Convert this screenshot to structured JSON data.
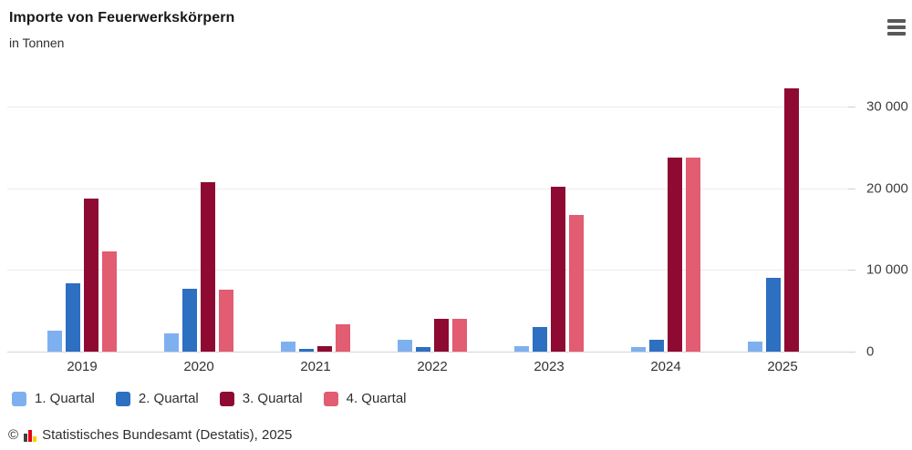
{
  "header": {
    "title": "Importe von Feuerwerkskörpern",
    "subtitle": "in Tonnen",
    "menu_icon": "hamburger-menu-icon"
  },
  "chart_data": {
    "type": "bar",
    "title": "Importe von Feuerwerkskörpern",
    "ylabel": "in Tonnen",
    "categories": [
      "2019",
      "2020",
      "2021",
      "2022",
      "2023",
      "2024",
      "2025"
    ],
    "series": [
      {
        "name": "1. Quartal",
        "color": "#7eb0f0",
        "values": [
          2600,
          2200,
          1200,
          1500,
          700,
          600,
          1200
        ]
      },
      {
        "name": "2. Quartal",
        "color": "#2d6fc0",
        "values": [
          8400,
          7700,
          300,
          600,
          3000,
          1500,
          9000
        ]
      },
      {
        "name": "3. Quartal",
        "color": "#8e0a33",
        "values": [
          18800,
          20800,
          700,
          4000,
          20200,
          23800,
          32200
        ]
      },
      {
        "name": "4. Quartal",
        "color": "#e25c72",
        "values": [
          12300,
          7600,
          3300,
          4000,
          16700,
          23800,
          null
        ]
      }
    ],
    "ylim": [
      0,
      32500
    ],
    "yticks": [
      {
        "value": 0,
        "label": "0"
      },
      {
        "value": 10000,
        "label": "10 000"
      },
      {
        "value": 20000,
        "label": "20 000"
      },
      {
        "value": 30000,
        "label": "30 000"
      }
    ],
    "grid": "horizontal",
    "legend_position": "bottom",
    "axis_side": "right"
  },
  "footer": {
    "copyright": "©",
    "logo": "destatis-bars-icon",
    "source": "Statistisches Bundesamt (Destatis), 2025"
  }
}
